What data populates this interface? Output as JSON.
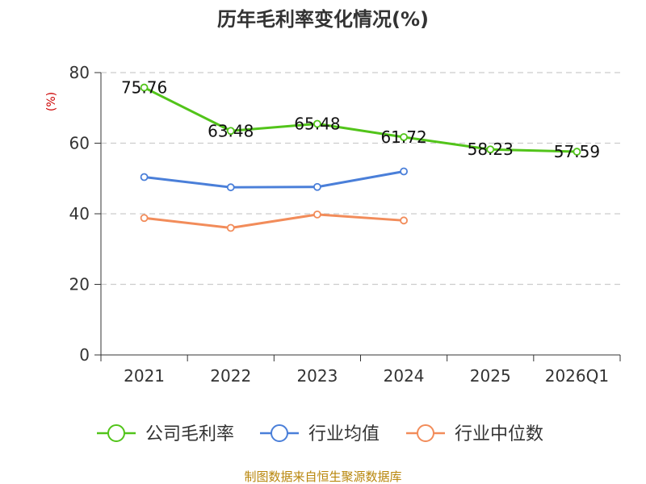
{
  "chart_data": {
    "type": "line",
    "title": "历年毛利率变化情况(%)",
    "ylabel": "(%)",
    "ylim": [
      0,
      80
    ],
    "yticks": [
      0,
      20,
      40,
      60,
      80
    ],
    "categories": [
      "2021",
      "2022",
      "2023",
      "2024",
      "2025",
      "2026Q1"
    ],
    "grid": true,
    "legend_position": "bottom",
    "series": [
      {
        "name": "公司毛利率",
        "color": "#52c41a",
        "values": [
          75.76,
          63.48,
          65.48,
          61.72,
          58.23,
          57.59
        ],
        "labels": [
          "75.76",
          "63.48",
          "65.48",
          "61.72",
          "58.23",
          "57.59"
        ]
      },
      {
        "name": "行业均值",
        "color": "#4a7fd9",
        "values": [
          50.4,
          47.5,
          47.6,
          52.0,
          null,
          null
        ]
      },
      {
        "name": "行业中位数",
        "color": "#f28c5a",
        "values": [
          38.8,
          36.0,
          39.8,
          38.1,
          null,
          null
        ]
      }
    ]
  },
  "source": "制图数据来自恒生聚源数据库"
}
